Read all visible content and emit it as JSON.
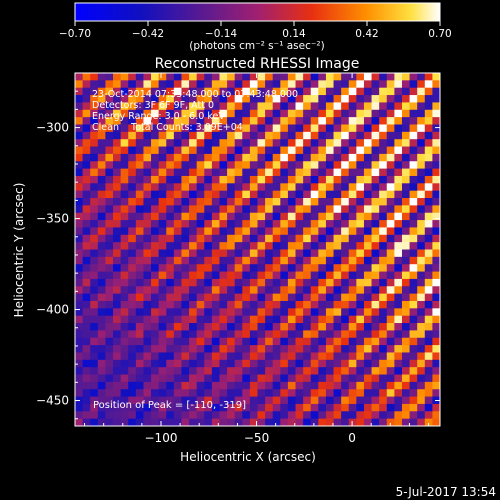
{
  "chart_data": {
    "type": "heatmap",
    "title": "Reconstructed RHESSI Image",
    "xlabel": "Heliocentric X (arcsec)",
    "ylabel": "Heliocentric Y (arcsec)",
    "xlim": [
      -145,
      46
    ],
    "ylim": [
      -464,
      -270
    ],
    "x_ticks": [
      -100,
      -50,
      0
    ],
    "x_tick_labels": [
      "−100",
      "−50",
      "0"
    ],
    "y_ticks": [
      -300,
      -350,
      -400,
      -450
    ],
    "y_tick_labels": [
      "−300",
      "−350",
      "−400",
      "−450"
    ],
    "colorbar": {
      "min": -0.7,
      "max": 0.7,
      "ticks": [
        -0.7,
        -0.42,
        -0.14,
        0.14,
        0.42,
        0.7
      ],
      "tick_labels": [
        "−0.70",
        "−0.42",
        "−0.14",
        "0.14",
        "0.42",
        "0.70"
      ],
      "unit_label": "(photons cm⁻² s⁻¹ asec⁻²)"
    },
    "grid": {
      "nx": 48,
      "ny": 48,
      "pattern": "diagonal stripes, strongest toward upper right, weak negative toward lower left",
      "stripe_period_cells": 4.6,
      "peak": [
        -110,
        -319
      ]
    },
    "annotations": [
      "23-Oct-2014 07:33:48.000 to 07:43:48.000",
      "Detectors: 3F 6F 9F, Att 0",
      "Energy Range: 3.0 - 6.0 keV",
      "Clean    Total Counts: 3.09E+04"
    ],
    "peak_label": "Position of Peak = [-110, -319]",
    "footer_date": "5-Jul-2017 13:54"
  }
}
